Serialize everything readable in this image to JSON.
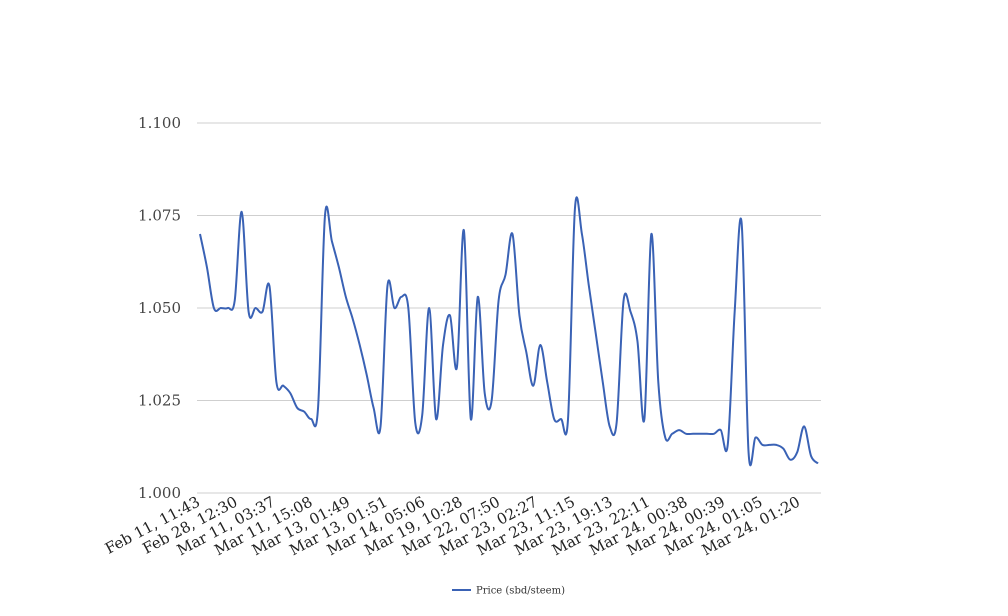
{
  "chart_data": {
    "type": "line",
    "title": "",
    "xlabel": "",
    "ylabel": "",
    "ylim": [
      1.0,
      1.1
    ],
    "yticks": [
      "1.000",
      "1.025",
      "1.050",
      "1.075",
      "1.100"
    ],
    "grid": true,
    "legend_position": "bottom-center",
    "x_tick_labels": [
      "Feb 11, 11:43",
      "Feb 28, 12:30",
      "Mar 11, 03:37",
      "Mar 11, 15:08",
      "Mar 13, 01:49",
      "Mar 13, 01:51",
      "Mar 14, 05:06",
      "Mar 19, 10:28",
      "Mar 22, 07:50",
      "Mar 23, 02:27",
      "Mar 23, 11:15",
      "Mar 23, 19:13",
      "Mar 23, 22:11",
      "Mar 24, 00:38",
      "Mar 24, 00:39",
      "Mar 24, 01:05",
      "Mar 24, 01:20"
    ],
    "series": [
      {
        "name": "Price (sbd/steem)",
        "color": "#3a62b5",
        "values": [
          1.07,
          1.061,
          1.05,
          1.05,
          1.05,
          1.052,
          1.076,
          1.049,
          1.05,
          1.049,
          1.056,
          1.03,
          1.029,
          1.027,
          1.023,
          1.022,
          1.02,
          1.023,
          1.075,
          1.068,
          1.061,
          1.053,
          1.047,
          1.04,
          1.032,
          1.023,
          1.018,
          1.056,
          1.05,
          1.053,
          1.05,
          1.019,
          1.021,
          1.05,
          1.02,
          1.04,
          1.048,
          1.034,
          1.071,
          1.02,
          1.053,
          1.027,
          1.025,
          1.052,
          1.059,
          1.07,
          1.048,
          1.038,
          1.029,
          1.04,
          1.03,
          1.02,
          1.02,
          1.02,
          1.077,
          1.07,
          1.056,
          1.043,
          1.03,
          1.018,
          1.019,
          1.052,
          1.049,
          1.041,
          1.02,
          1.07,
          1.03,
          1.015,
          1.016,
          1.017,
          1.016,
          1.016,
          1.016,
          1.016,
          1.016,
          1.017,
          1.013,
          1.049,
          1.073,
          1.011,
          1.015,
          1.013,
          1.013,
          1.013,
          1.012,
          1.009,
          1.011,
          1.018,
          1.01,
          1.008
        ]
      }
    ]
  }
}
